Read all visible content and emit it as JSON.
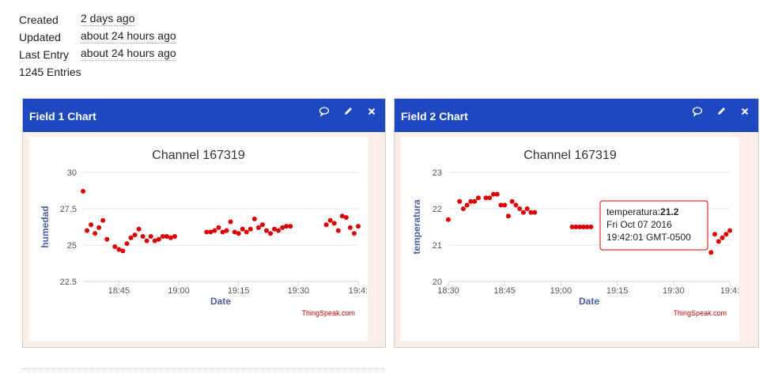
{
  "meta": {
    "created_label": "Created",
    "created_value": "2 days ago",
    "updated_label": "Updated",
    "updated_value": "about 24 hours ago",
    "last_entry_label": "Last Entry",
    "last_entry_value": "about 24 hours ago",
    "entries": "1245 Entries"
  },
  "panels": [
    {
      "title": "Field 1 Chart"
    },
    {
      "title": "Field 2 Chart"
    }
  ],
  "icons": {
    "comment": "comment-icon",
    "edit": "pencil-icon",
    "close": "close-icon"
  },
  "colors": {
    "header": "#1e48c0",
    "point": "#dd0000",
    "axis_label": "#4a5ea8"
  },
  "chart_data": [
    {
      "type": "scatter",
      "title": "Channel 167319",
      "xlabel": "Date",
      "ylabel": "humedad",
      "credit": "ThingSpeak.com",
      "xlim": [
        36,
        105
      ],
      "ylim": [
        22.5,
        30
      ],
      "y_ticks": [
        "22.5",
        "25",
        "27.5",
        "30"
      ],
      "y_tick_values": [
        22.5,
        25,
        27.5,
        30
      ],
      "x_ticks": [
        "18:45",
        "19:00",
        "19:15",
        "19:30",
        "19:4:"
      ],
      "x_tick_values": [
        45,
        60,
        75,
        90,
        105
      ],
      "x": [
        36,
        37,
        38,
        39,
        40,
        41,
        42,
        44,
        45,
        46,
        47,
        48,
        49,
        50,
        51,
        52,
        53,
        54,
        55,
        56,
        57,
        58,
        59,
        67,
        68,
        69,
        70,
        71,
        72,
        73,
        74,
        75,
        76,
        77,
        78,
        79,
        80,
        81,
        82,
        83,
        84,
        85,
        86,
        87,
        88,
        97,
        98,
        99,
        100,
        101,
        102,
        103,
        104,
        105
      ],
      "y": [
        28.7,
        26.0,
        26.4,
        25.8,
        26.2,
        26.7,
        25.4,
        24.9,
        24.7,
        24.6,
        25.1,
        25.5,
        25.7,
        26.1,
        25.6,
        25.3,
        25.6,
        25.3,
        25.4,
        25.6,
        25.6,
        25.5,
        25.6,
        25.9,
        25.9,
        26.0,
        26.2,
        25.9,
        26.0,
        26.6,
        25.9,
        25.8,
        26.1,
        25.9,
        26.1,
        26.8,
        26.2,
        26.4,
        26.0,
        25.8,
        26.1,
        26.0,
        26.2,
        26.3,
        26.3,
        26.4,
        26.7,
        26.5,
        26.0,
        27.0,
        26.9,
        26.2,
        25.8,
        26.3
      ]
    },
    {
      "type": "scatter",
      "title": "Channel 167319",
      "xlabel": "Date",
      "ylabel": "temperatura",
      "credit": "ThingSpeak.com",
      "xlim": [
        30,
        105
      ],
      "ylim": [
        20,
        23
      ],
      "y_ticks": [
        "20",
        "21",
        "22",
        "23"
      ],
      "y_tick_values": [
        20,
        21,
        22,
        23
      ],
      "x_ticks": [
        "18:30",
        "18:45",
        "19:00",
        "19:15",
        "19:30",
        "19:4:"
      ],
      "x_tick_values": [
        30,
        45,
        60,
        75,
        90,
        105
      ],
      "x": [
        30,
        33,
        34,
        35,
        36,
        37,
        38,
        40,
        41,
        42,
        43,
        44,
        45,
        46,
        47,
        48,
        49,
        50,
        51,
        52,
        53,
        63,
        64,
        65,
        66,
        67,
        68,
        100,
        101,
        102,
        103,
        104,
        105
      ],
      "y": [
        21.7,
        22.2,
        22.0,
        22.1,
        22.2,
        22.2,
        22.3,
        22.3,
        22.3,
        22.4,
        22.4,
        22.1,
        22.1,
        21.8,
        22.2,
        22.1,
        22.0,
        21.9,
        22.0,
        21.9,
        21.9,
        21.5,
        21.5,
        21.5,
        21.5,
        21.5,
        21.5,
        20.8,
        21.3,
        21.1,
        21.2,
        21.3,
        21.4
      ],
      "tooltip": {
        "series": "temperatura:",
        "value": "21.2",
        "date": "Fri Oct 07 2016",
        "time": "19:42:01 GMT-0500"
      }
    }
  ]
}
